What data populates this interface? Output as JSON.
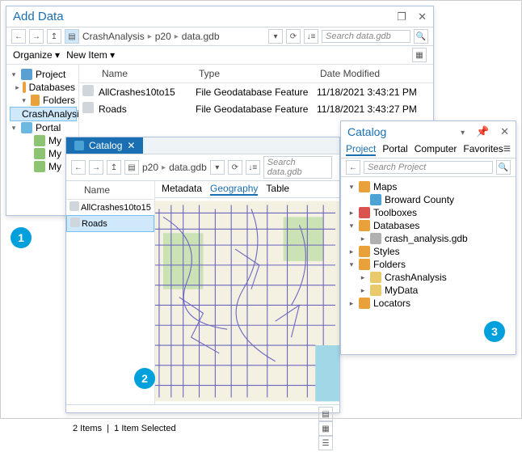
{
  "badges": {
    "one": "1",
    "two": "2",
    "three": "3"
  },
  "addData": {
    "title": "Add Data",
    "nav": {
      "breadcrumbs": [
        "CrashAnalysis",
        "p20",
        "data.gdb"
      ],
      "search_placeholder": "Search data.gdb"
    },
    "subbar": {
      "organize": "Organize",
      "newitem": "New Item"
    },
    "tree": {
      "root": "Project",
      "databases": "Databases",
      "folders": "Folders",
      "crash": "CrashAnalysis",
      "portal": "Portal",
      "my1": "My",
      "my2": "My",
      "my3": "My"
    },
    "cols": {
      "name": "Name",
      "type": "Type",
      "date": "Date Modified"
    },
    "rows": [
      {
        "name": "AllCrashes10to15",
        "type": "File Geodatabase Feature",
        "date": "11/18/2021 3:43:21 PM"
      },
      {
        "name": "Roads",
        "type": "File Geodatabase Feature",
        "date": "11/18/2021 3:43:27 PM"
      }
    ],
    "icons": {
      "col_w_name": 120,
      "col_w_type": 150,
      "col_w_date": 140
    }
  },
  "catalogView": {
    "tab": "Catalog",
    "nav": {
      "breadcrumbs": [
        "p20",
        "data.gdb"
      ],
      "search_placeholder": "Search data.gdb"
    },
    "col_name": "Name",
    "items": [
      {
        "name": "AllCrashes10to15"
      },
      {
        "name": "Roads"
      }
    ],
    "selected_index": 1,
    "tabs": {
      "metadata": "Metadata",
      "geography": "Geography",
      "table": "Table",
      "active": "Geography"
    },
    "status": {
      "items": "2 Items",
      "selected": "1 Item Selected"
    },
    "map": {
      "bg": "#f4f1e3",
      "water": "#a1d7e6",
      "park": "#b9dca0",
      "road_color": "#6b66c0",
      "road_width": 1.1
    }
  },
  "catalogPane": {
    "title": "Catalog",
    "tabs": [
      "Project",
      "Portal",
      "Computer",
      "Favorites"
    ],
    "active_tab": 0,
    "search_placeholder": "Search Project",
    "tree": [
      {
        "d": 0,
        "exp": true,
        "label": "Maps",
        "ico": "#e9a23b"
      },
      {
        "d": 1,
        "exp": null,
        "label": "Broward County",
        "ico": "#4aa3d4"
      },
      {
        "d": 0,
        "exp": false,
        "label": "Toolboxes",
        "ico": "#d9534f"
      },
      {
        "d": 0,
        "exp": true,
        "label": "Databases",
        "ico": "#e9a23b"
      },
      {
        "d": 1,
        "exp": false,
        "label": "crash_analysis.gdb",
        "ico": "#b0b0b0"
      },
      {
        "d": 0,
        "exp": false,
        "label": "Styles",
        "ico": "#e9a23b"
      },
      {
        "d": 0,
        "exp": true,
        "label": "Folders",
        "ico": "#e9a23b"
      },
      {
        "d": 1,
        "exp": false,
        "label": "CrashAnalysis",
        "ico": "#e9ca6a"
      },
      {
        "d": 1,
        "exp": false,
        "label": "MyData",
        "ico": "#e9ca6a"
      },
      {
        "d": 0,
        "exp": false,
        "label": "Locators",
        "ico": "#e9a23b"
      }
    ]
  }
}
